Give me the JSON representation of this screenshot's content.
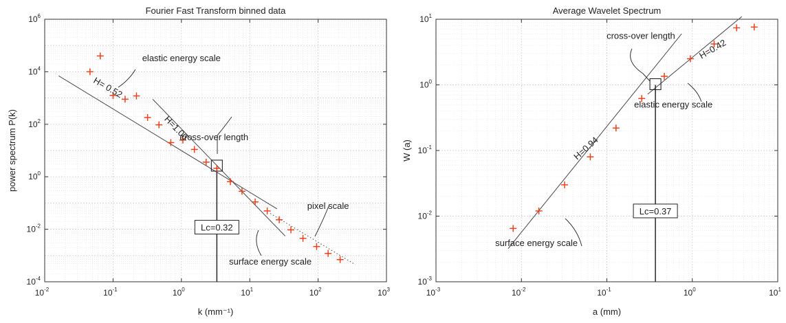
{
  "chart_data": [
    {
      "type": "scatter",
      "title": "Fourier Fast Transform binned data",
      "xlabel": "k (mm⁻¹)",
      "ylabel": "power spectrum P(k)",
      "xscale": "log",
      "yscale": "log",
      "xlim": [
        0.01,
        1000
      ],
      "ylim": [
        0.0001,
        1000000
      ],
      "x_ticks": [
        {
          "base": "10",
          "exp": "-2"
        },
        {
          "base": "10",
          "exp": "-1"
        },
        {
          "base": "10",
          "exp": "0"
        },
        {
          "base": "10",
          "exp": "1"
        },
        {
          "base": "10",
          "exp": "2"
        },
        {
          "base": "10",
          "exp": "3"
        }
      ],
      "y_ticks": [
        {
          "base": "10",
          "exp": "-4"
        },
        {
          "base": "10",
          "exp": "-2"
        },
        {
          "base": "10",
          "exp": "0"
        },
        {
          "base": "10",
          "exp": "2"
        },
        {
          "base": "10",
          "exp": "4"
        },
        {
          "base": "10",
          "exp": "6"
        }
      ],
      "grid": true,
      "points": [
        {
          "x": 0.046,
          "y": 10000
        },
        {
          "x": 0.065,
          "y": 40000
        },
        {
          "x": 0.1,
          "y": 1250
        },
        {
          "x": 0.15,
          "y": 900
        },
        {
          "x": 0.22,
          "y": 1200
        },
        {
          "x": 0.32,
          "y": 180
        },
        {
          "x": 0.47,
          "y": 95
        },
        {
          "x": 0.7,
          "y": 20
        },
        {
          "x": 1.05,
          "y": 25
        },
        {
          "x": 1.55,
          "y": 11
        },
        {
          "x": 2.3,
          "y": 3.6
        },
        {
          "x": 3.3,
          "y": 2.1
        },
        {
          "x": 5.2,
          "y": 0.65
        },
        {
          "x": 7.7,
          "y": 0.28
        },
        {
          "x": 12,
          "y": 0.11
        },
        {
          "x": 18,
          "y": 0.05
        },
        {
          "x": 27,
          "y": 0.023
        },
        {
          "x": 40,
          "y": 0.0095
        },
        {
          "x": 60,
          "y": 0.0045
        },
        {
          "x": 95,
          "y": 0.0022
        },
        {
          "x": 140,
          "y": 0.0012
        },
        {
          "x": 210,
          "y": 0.0007
        }
      ],
      "lines": [
        {
          "from": [
            0.016,
            7000
          ],
          "to": [
            25,
            0.06
          ],
          "style": "solid"
        },
        {
          "from": [
            0.38,
            900
          ],
          "to": [
            33,
            0.0055
          ],
          "style": "solid"
        },
        {
          "from": [
            20,
            0.04
          ],
          "to": [
            350,
            0.00045
          ],
          "style": "dotted"
        }
      ],
      "line_labels": [
        {
          "text": "H= 0.52",
          "x": 0.08,
          "y": 2000,
          "angle": 30
        },
        {
          "text": "H=1.00",
          "x": 0.78,
          "y": 60,
          "angle": 46
        }
      ],
      "annotations": [
        {
          "text": "elastic energy scale",
          "x": 1.0,
          "y": 25000
        },
        {
          "text": "cross-over length",
          "x": 3.0,
          "y": 25
        },
        {
          "text": "pixel scale",
          "x": 140,
          "y": 0.06
        },
        {
          "text": "surface energy scale",
          "x": 20,
          "y": 0.00045
        }
      ],
      "crossover": {
        "x": 3.3,
        "y": 2.5,
        "label": "Lc=0.32",
        "label_y": 0.012
      }
    },
    {
      "type": "scatter",
      "title": "Average Wavelet Spectrum",
      "xlabel": "a (mm)",
      "ylabel": "W (a)",
      "xscale": "log",
      "yscale": "log",
      "xlim": [
        0.001,
        10
      ],
      "ylim": [
        0.001,
        10
      ],
      "x_ticks": [
        {
          "base": "10",
          "exp": "-3"
        },
        {
          "base": "10",
          "exp": "-2"
        },
        {
          "base": "10",
          "exp": "-1"
        },
        {
          "base": "10",
          "exp": "0"
        },
        {
          "base": "10",
          "exp": "1"
        }
      ],
      "y_ticks": [
        {
          "base": "10",
          "exp": "-3"
        },
        {
          "base": "10",
          "exp": "-2"
        },
        {
          "base": "10",
          "exp": "-1"
        },
        {
          "base": "10",
          "exp": "0"
        },
        {
          "base": "10",
          "exp": "1"
        }
      ],
      "grid": true,
      "points": [
        {
          "x": 0.008,
          "y": 0.0065
        },
        {
          "x": 0.016,
          "y": 0.012
        },
        {
          "x": 0.032,
          "y": 0.03
        },
        {
          "x": 0.064,
          "y": 0.08
        },
        {
          "x": 0.128,
          "y": 0.22
        },
        {
          "x": 0.256,
          "y": 0.62
        },
        {
          "x": 0.47,
          "y": 1.35
        },
        {
          "x": 0.95,
          "y": 2.5
        },
        {
          "x": 1.8,
          "y": 4.2
        },
        {
          "x": 3.3,
          "y": 7.4
        },
        {
          "x": 5.3,
          "y": 7.6
        }
      ],
      "lines": [
        {
          "from": [
            0.007,
            0.0032
          ],
          "to": [
            0.75,
            6.0
          ],
          "style": "solid"
        },
        {
          "from": [
            0.3,
            0.72
          ],
          "to": [
            3.8,
            11
          ],
          "style": "solid"
        }
      ],
      "line_labels": [
        {
          "text": "H=0.94",
          "x": 0.06,
          "y": 0.1,
          "angle": -42
        },
        {
          "text": "H=0.42",
          "x": 1.8,
          "y": 3.2,
          "angle": -30
        }
      ],
      "annotations": [
        {
          "text": "cross-over length",
          "x": 0.25,
          "y": 5.0
        },
        {
          "text": "elastic energy scale",
          "x": 0.6,
          "y": 0.45
        },
        {
          "text": "surface energy scale",
          "x": 0.015,
          "y": 0.0035
        }
      ],
      "crossover": {
        "x": 0.37,
        "y": 1.0,
        "label": "Lc=0.37",
        "label_y": 0.012
      }
    }
  ]
}
